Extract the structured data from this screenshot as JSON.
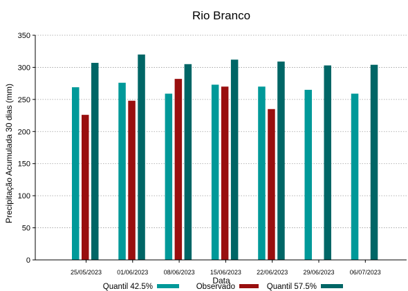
{
  "chart_data": {
    "type": "bar",
    "title": "Rio Branco",
    "xlabel": "Data",
    "ylabel": "Precipitação Acumulada 30 dias (mm)",
    "ylim": [
      0,
      350
    ],
    "yticks": [
      0,
      50,
      100,
      150,
      200,
      250,
      300,
      350
    ],
    "grid": true,
    "legend_position": "bottom",
    "categories": [
      "25/05/2023",
      "01/06/2023",
      "08/06/2023",
      "15/06/2023",
      "22/06/2023",
      "29/06/2023",
      "06/07/2023"
    ],
    "series": [
      {
        "name": "Quantil 42.5%",
        "color": "#009999",
        "values": [
          269,
          276,
          259,
          273,
          270,
          265,
          259
        ]
      },
      {
        "name": "Observado",
        "color": "#990f0f",
        "values": [
          226,
          248,
          282,
          270,
          235,
          null,
          null
        ]
      },
      {
        "name": "Quantil 57.5%",
        "color": "#006666",
        "values": [
          307,
          320,
          305,
          312,
          309,
          303,
          304
        ]
      }
    ]
  }
}
